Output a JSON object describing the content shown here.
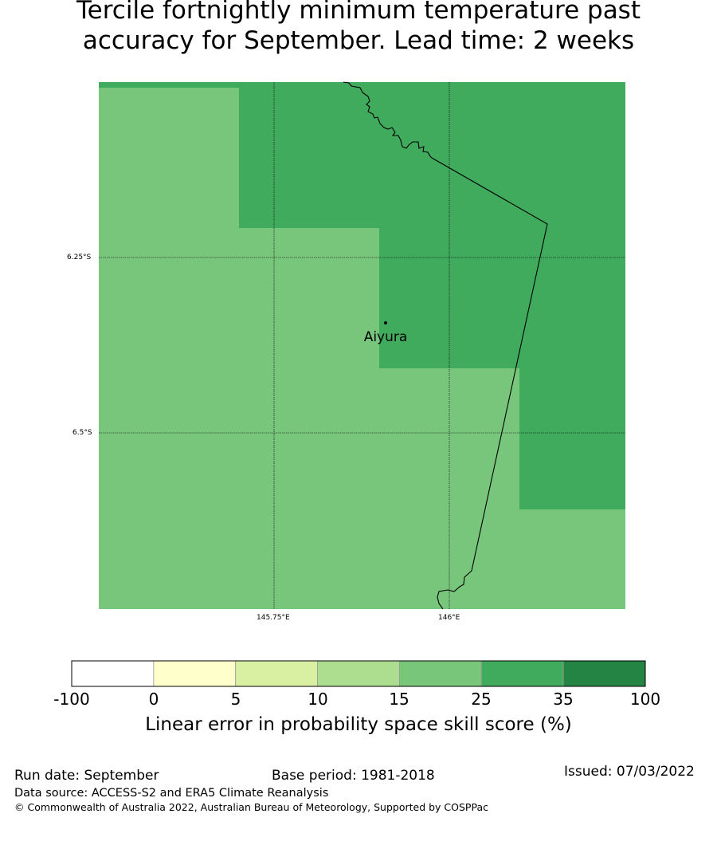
{
  "title": {
    "line1": "Tercile fortnightly minimum temperature past",
    "line2": "accuracy for September. Lead time: 2 weeks"
  },
  "map": {
    "lat_labels": [
      "6.25°S",
      "6.5°S"
    ],
    "lon_labels": [
      "145.75°E",
      "146°E"
    ],
    "place": {
      "name": "Aiyura"
    },
    "colors": {
      "light_green": "#78c67c",
      "mid_green": "#41ab5d"
    }
  },
  "colorbar": {
    "ticks": [
      "-100",
      "0",
      "5",
      "10",
      "15",
      "25",
      "35",
      "100"
    ],
    "colors": [
      "#ffffff",
      "#ffffcc",
      "#d9f0a3",
      "#addd8e",
      "#78c679",
      "#41ab5d",
      "#238443"
    ],
    "label": "Linear error in probability space skill score (%)"
  },
  "footer": {
    "run_date": "Run date: September",
    "base_period": "Base period: 1981-2018",
    "issued": "Issued: 07/03/2022",
    "data_source": "Data source: ACCESS-S2 and ERA5 Climate Reanalysis",
    "copyright": "© Commonwealth of Australia 2022, Australian Bureau of Meteorology, Supported by COSPPac"
  }
}
